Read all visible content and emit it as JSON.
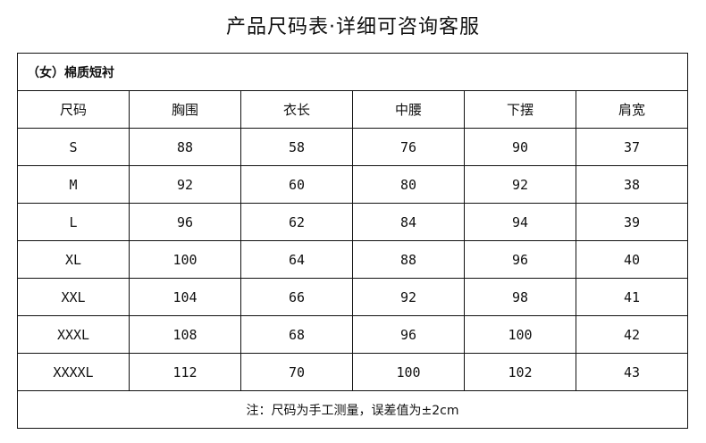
{
  "title": "产品尺码表·详细可咨询客服",
  "table": {
    "caption": "（女）棉质短衬",
    "headers": [
      "尺码",
      "胸围",
      "衣长",
      "中腰",
      "下摆",
      "肩宽"
    ],
    "rows": [
      [
        "S",
        "88",
        "58",
        "76",
        "90",
        "37"
      ],
      [
        "M",
        "92",
        "60",
        "80",
        "92",
        "38"
      ],
      [
        "L",
        "96",
        "62",
        "84",
        "94",
        "39"
      ],
      [
        "XL",
        "100",
        "64",
        "88",
        "96",
        "40"
      ],
      [
        "XXL",
        "104",
        "66",
        "92",
        "98",
        "41"
      ],
      [
        "XXXL",
        "108",
        "68",
        "96",
        "100",
        "42"
      ],
      [
        "XXXXL",
        "112",
        "70",
        "100",
        "102",
        "43"
      ]
    ],
    "note": "注：尺码为手工测量，误差值为±2cm"
  }
}
